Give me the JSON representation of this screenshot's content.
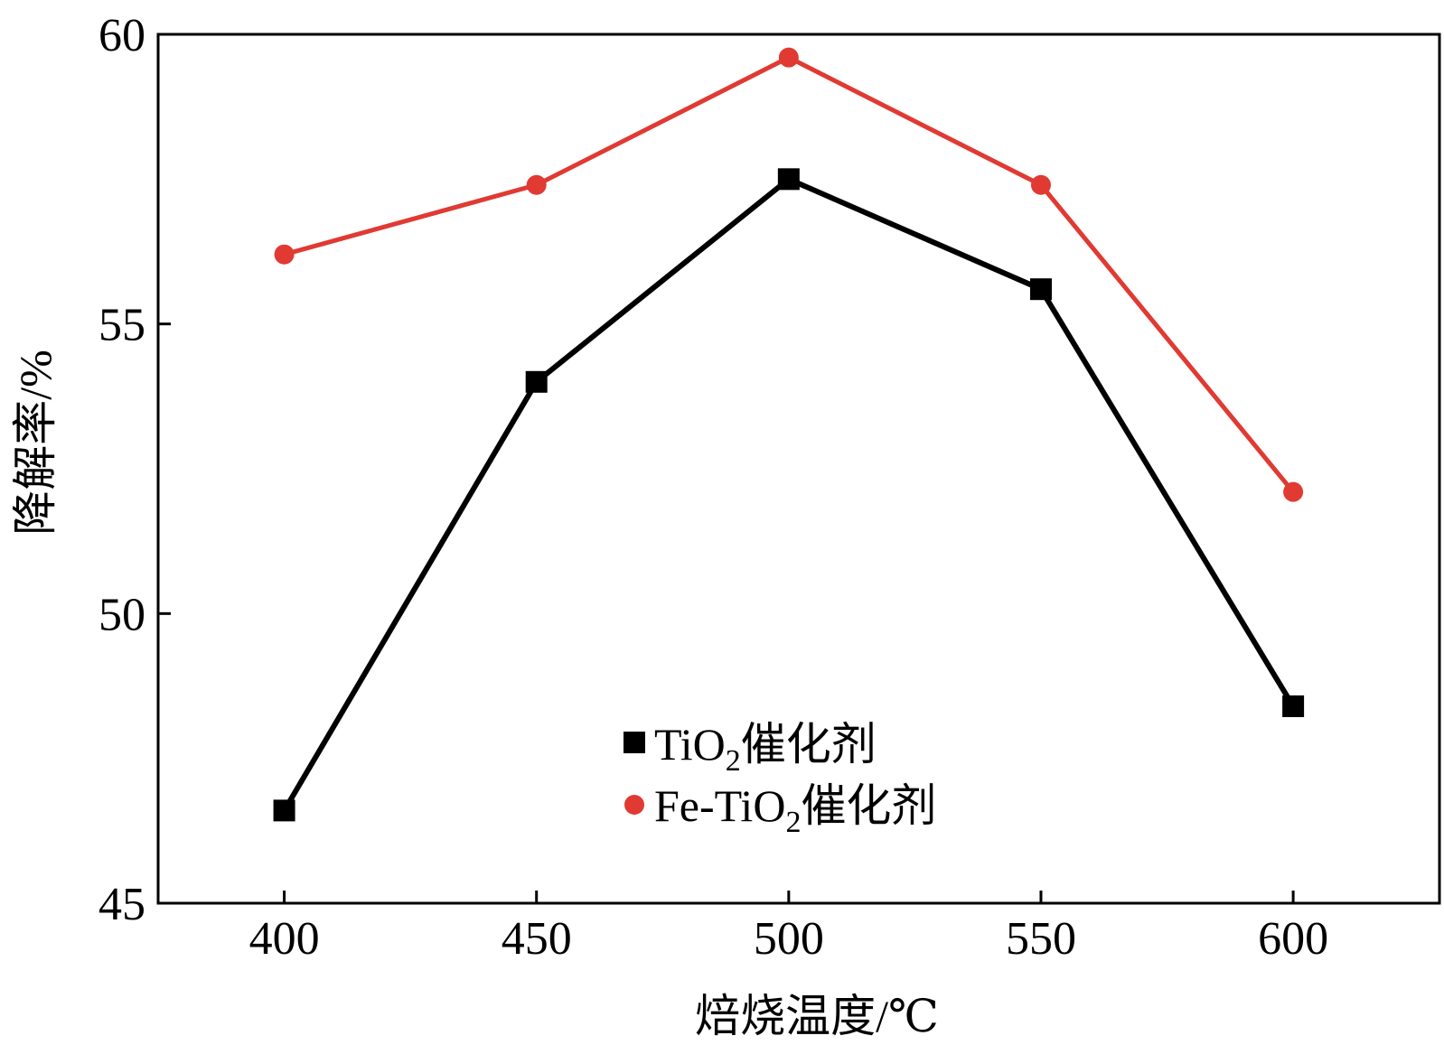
{
  "chart_data": {
    "type": "line",
    "xlabel": "焙烧温度/℃",
    "ylabel": "降解率/%",
    "x": [
      400,
      450,
      500,
      550,
      600
    ],
    "xlim": [
      375,
      600
    ],
    "ylim": [
      45,
      60
    ],
    "xticks": [
      "400",
      "450",
      "500",
      "550",
      "600"
    ],
    "yticks": [
      "45",
      "50",
      "55",
      "60"
    ],
    "grid": false,
    "legend_position": "bottom-center",
    "series": [
      {
        "name_main": "TiO",
        "name_sub": "2",
        "name_tail": "催化剂",
        "marker": "square",
        "color": "#000000",
        "x": [
          400,
          450,
          500,
          550,
          600
        ],
        "values": [
          46.6,
          54.0,
          57.5,
          55.6,
          48.4
        ]
      },
      {
        "name_main": "Fe-TiO",
        "name_sub": "2",
        "name_tail": "催化剂",
        "marker": "circle",
        "color": "#e03a33",
        "x": [
          400,
          450,
          500,
          550,
          600
        ],
        "values": [
          56.2,
          57.4,
          59.6,
          57.4,
          52.1
        ]
      }
    ]
  }
}
